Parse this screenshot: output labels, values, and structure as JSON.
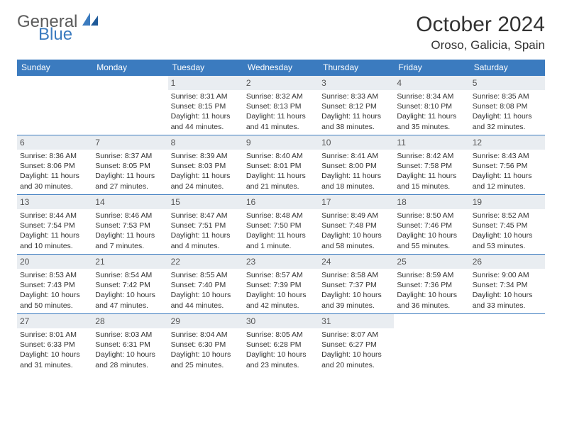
{
  "brand": {
    "part1": "General",
    "part2": "Blue"
  },
  "title": "October 2024",
  "location": "Oroso, Galicia, Spain",
  "colors": {
    "accent": "#3b7bbf",
    "header_bg": "#3b7bbf",
    "daynum_bg": "#e9edf1"
  },
  "weekdays": [
    "Sunday",
    "Monday",
    "Tuesday",
    "Wednesday",
    "Thursday",
    "Friday",
    "Saturday"
  ],
  "weeks": [
    [
      null,
      null,
      {
        "n": "1",
        "sunrise": "Sunrise: 8:31 AM",
        "sunset": "Sunset: 8:15 PM",
        "daylight": "Daylight: 11 hours and 44 minutes."
      },
      {
        "n": "2",
        "sunrise": "Sunrise: 8:32 AM",
        "sunset": "Sunset: 8:13 PM",
        "daylight": "Daylight: 11 hours and 41 minutes."
      },
      {
        "n": "3",
        "sunrise": "Sunrise: 8:33 AM",
        "sunset": "Sunset: 8:12 PM",
        "daylight": "Daylight: 11 hours and 38 minutes."
      },
      {
        "n": "4",
        "sunrise": "Sunrise: 8:34 AM",
        "sunset": "Sunset: 8:10 PM",
        "daylight": "Daylight: 11 hours and 35 minutes."
      },
      {
        "n": "5",
        "sunrise": "Sunrise: 8:35 AM",
        "sunset": "Sunset: 8:08 PM",
        "daylight": "Daylight: 11 hours and 32 minutes."
      }
    ],
    [
      {
        "n": "6",
        "sunrise": "Sunrise: 8:36 AM",
        "sunset": "Sunset: 8:06 PM",
        "daylight": "Daylight: 11 hours and 30 minutes."
      },
      {
        "n": "7",
        "sunrise": "Sunrise: 8:37 AM",
        "sunset": "Sunset: 8:05 PM",
        "daylight": "Daylight: 11 hours and 27 minutes."
      },
      {
        "n": "8",
        "sunrise": "Sunrise: 8:39 AM",
        "sunset": "Sunset: 8:03 PM",
        "daylight": "Daylight: 11 hours and 24 minutes."
      },
      {
        "n": "9",
        "sunrise": "Sunrise: 8:40 AM",
        "sunset": "Sunset: 8:01 PM",
        "daylight": "Daylight: 11 hours and 21 minutes."
      },
      {
        "n": "10",
        "sunrise": "Sunrise: 8:41 AM",
        "sunset": "Sunset: 8:00 PM",
        "daylight": "Daylight: 11 hours and 18 minutes."
      },
      {
        "n": "11",
        "sunrise": "Sunrise: 8:42 AM",
        "sunset": "Sunset: 7:58 PM",
        "daylight": "Daylight: 11 hours and 15 minutes."
      },
      {
        "n": "12",
        "sunrise": "Sunrise: 8:43 AM",
        "sunset": "Sunset: 7:56 PM",
        "daylight": "Daylight: 11 hours and 12 minutes."
      }
    ],
    [
      {
        "n": "13",
        "sunrise": "Sunrise: 8:44 AM",
        "sunset": "Sunset: 7:54 PM",
        "daylight": "Daylight: 11 hours and 10 minutes."
      },
      {
        "n": "14",
        "sunrise": "Sunrise: 8:46 AM",
        "sunset": "Sunset: 7:53 PM",
        "daylight": "Daylight: 11 hours and 7 minutes."
      },
      {
        "n": "15",
        "sunrise": "Sunrise: 8:47 AM",
        "sunset": "Sunset: 7:51 PM",
        "daylight": "Daylight: 11 hours and 4 minutes."
      },
      {
        "n": "16",
        "sunrise": "Sunrise: 8:48 AM",
        "sunset": "Sunset: 7:50 PM",
        "daylight": "Daylight: 11 hours and 1 minute."
      },
      {
        "n": "17",
        "sunrise": "Sunrise: 8:49 AM",
        "sunset": "Sunset: 7:48 PM",
        "daylight": "Daylight: 10 hours and 58 minutes."
      },
      {
        "n": "18",
        "sunrise": "Sunrise: 8:50 AM",
        "sunset": "Sunset: 7:46 PM",
        "daylight": "Daylight: 10 hours and 55 minutes."
      },
      {
        "n": "19",
        "sunrise": "Sunrise: 8:52 AM",
        "sunset": "Sunset: 7:45 PM",
        "daylight": "Daylight: 10 hours and 53 minutes."
      }
    ],
    [
      {
        "n": "20",
        "sunrise": "Sunrise: 8:53 AM",
        "sunset": "Sunset: 7:43 PM",
        "daylight": "Daylight: 10 hours and 50 minutes."
      },
      {
        "n": "21",
        "sunrise": "Sunrise: 8:54 AM",
        "sunset": "Sunset: 7:42 PM",
        "daylight": "Daylight: 10 hours and 47 minutes."
      },
      {
        "n": "22",
        "sunrise": "Sunrise: 8:55 AM",
        "sunset": "Sunset: 7:40 PM",
        "daylight": "Daylight: 10 hours and 44 minutes."
      },
      {
        "n": "23",
        "sunrise": "Sunrise: 8:57 AM",
        "sunset": "Sunset: 7:39 PM",
        "daylight": "Daylight: 10 hours and 42 minutes."
      },
      {
        "n": "24",
        "sunrise": "Sunrise: 8:58 AM",
        "sunset": "Sunset: 7:37 PM",
        "daylight": "Daylight: 10 hours and 39 minutes."
      },
      {
        "n": "25",
        "sunrise": "Sunrise: 8:59 AM",
        "sunset": "Sunset: 7:36 PM",
        "daylight": "Daylight: 10 hours and 36 minutes."
      },
      {
        "n": "26",
        "sunrise": "Sunrise: 9:00 AM",
        "sunset": "Sunset: 7:34 PM",
        "daylight": "Daylight: 10 hours and 33 minutes."
      }
    ],
    [
      {
        "n": "27",
        "sunrise": "Sunrise: 8:01 AM",
        "sunset": "Sunset: 6:33 PM",
        "daylight": "Daylight: 10 hours and 31 minutes."
      },
      {
        "n": "28",
        "sunrise": "Sunrise: 8:03 AM",
        "sunset": "Sunset: 6:31 PM",
        "daylight": "Daylight: 10 hours and 28 minutes."
      },
      {
        "n": "29",
        "sunrise": "Sunrise: 8:04 AM",
        "sunset": "Sunset: 6:30 PM",
        "daylight": "Daylight: 10 hours and 25 minutes."
      },
      {
        "n": "30",
        "sunrise": "Sunrise: 8:05 AM",
        "sunset": "Sunset: 6:28 PM",
        "daylight": "Daylight: 10 hours and 23 minutes."
      },
      {
        "n": "31",
        "sunrise": "Sunrise: 8:07 AM",
        "sunset": "Sunset: 6:27 PM",
        "daylight": "Daylight: 10 hours and 20 minutes."
      },
      null,
      null
    ]
  ]
}
